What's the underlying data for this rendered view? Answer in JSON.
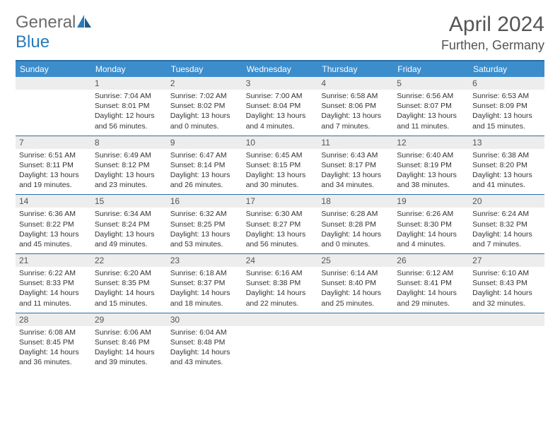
{
  "logo": {
    "text1": "General",
    "text2": "Blue"
  },
  "title": "April 2024",
  "location": "Furthen, Germany",
  "dayHeaders": [
    "Sunday",
    "Monday",
    "Tuesday",
    "Wednesday",
    "Thursday",
    "Friday",
    "Saturday"
  ],
  "colors": {
    "headerBg": "#3c8dcc",
    "borderTop": "#2a6da3",
    "rowDivider": "#2a6da3",
    "dayNumBg": "#ededed",
    "logoGray": "#6b6b6b",
    "logoBlue": "#2a7ab9"
  },
  "weeks": [
    [
      {
        "empty": true
      },
      {
        "day": "1",
        "sunrise": "Sunrise: 7:04 AM",
        "sunset": "Sunset: 8:01 PM",
        "d1": "Daylight: 12 hours",
        "d2": "and 56 minutes."
      },
      {
        "day": "2",
        "sunrise": "Sunrise: 7:02 AM",
        "sunset": "Sunset: 8:02 PM",
        "d1": "Daylight: 13 hours",
        "d2": "and 0 minutes."
      },
      {
        "day": "3",
        "sunrise": "Sunrise: 7:00 AM",
        "sunset": "Sunset: 8:04 PM",
        "d1": "Daylight: 13 hours",
        "d2": "and 4 minutes."
      },
      {
        "day": "4",
        "sunrise": "Sunrise: 6:58 AM",
        "sunset": "Sunset: 8:06 PM",
        "d1": "Daylight: 13 hours",
        "d2": "and 7 minutes."
      },
      {
        "day": "5",
        "sunrise": "Sunrise: 6:56 AM",
        "sunset": "Sunset: 8:07 PM",
        "d1": "Daylight: 13 hours",
        "d2": "and 11 minutes."
      },
      {
        "day": "6",
        "sunrise": "Sunrise: 6:53 AM",
        "sunset": "Sunset: 8:09 PM",
        "d1": "Daylight: 13 hours",
        "d2": "and 15 minutes."
      }
    ],
    [
      {
        "day": "7",
        "sunrise": "Sunrise: 6:51 AM",
        "sunset": "Sunset: 8:11 PM",
        "d1": "Daylight: 13 hours",
        "d2": "and 19 minutes."
      },
      {
        "day": "8",
        "sunrise": "Sunrise: 6:49 AM",
        "sunset": "Sunset: 8:12 PM",
        "d1": "Daylight: 13 hours",
        "d2": "and 23 minutes."
      },
      {
        "day": "9",
        "sunrise": "Sunrise: 6:47 AM",
        "sunset": "Sunset: 8:14 PM",
        "d1": "Daylight: 13 hours",
        "d2": "and 26 minutes."
      },
      {
        "day": "10",
        "sunrise": "Sunrise: 6:45 AM",
        "sunset": "Sunset: 8:15 PM",
        "d1": "Daylight: 13 hours",
        "d2": "and 30 minutes."
      },
      {
        "day": "11",
        "sunrise": "Sunrise: 6:43 AM",
        "sunset": "Sunset: 8:17 PM",
        "d1": "Daylight: 13 hours",
        "d2": "and 34 minutes."
      },
      {
        "day": "12",
        "sunrise": "Sunrise: 6:40 AM",
        "sunset": "Sunset: 8:19 PM",
        "d1": "Daylight: 13 hours",
        "d2": "and 38 minutes."
      },
      {
        "day": "13",
        "sunrise": "Sunrise: 6:38 AM",
        "sunset": "Sunset: 8:20 PM",
        "d1": "Daylight: 13 hours",
        "d2": "and 41 minutes."
      }
    ],
    [
      {
        "day": "14",
        "sunrise": "Sunrise: 6:36 AM",
        "sunset": "Sunset: 8:22 PM",
        "d1": "Daylight: 13 hours",
        "d2": "and 45 minutes."
      },
      {
        "day": "15",
        "sunrise": "Sunrise: 6:34 AM",
        "sunset": "Sunset: 8:24 PM",
        "d1": "Daylight: 13 hours",
        "d2": "and 49 minutes."
      },
      {
        "day": "16",
        "sunrise": "Sunrise: 6:32 AM",
        "sunset": "Sunset: 8:25 PM",
        "d1": "Daylight: 13 hours",
        "d2": "and 53 minutes."
      },
      {
        "day": "17",
        "sunrise": "Sunrise: 6:30 AM",
        "sunset": "Sunset: 8:27 PM",
        "d1": "Daylight: 13 hours",
        "d2": "and 56 minutes."
      },
      {
        "day": "18",
        "sunrise": "Sunrise: 6:28 AM",
        "sunset": "Sunset: 8:28 PM",
        "d1": "Daylight: 14 hours",
        "d2": "and 0 minutes."
      },
      {
        "day": "19",
        "sunrise": "Sunrise: 6:26 AM",
        "sunset": "Sunset: 8:30 PM",
        "d1": "Daylight: 14 hours",
        "d2": "and 4 minutes."
      },
      {
        "day": "20",
        "sunrise": "Sunrise: 6:24 AM",
        "sunset": "Sunset: 8:32 PM",
        "d1": "Daylight: 14 hours",
        "d2": "and 7 minutes."
      }
    ],
    [
      {
        "day": "21",
        "sunrise": "Sunrise: 6:22 AM",
        "sunset": "Sunset: 8:33 PM",
        "d1": "Daylight: 14 hours",
        "d2": "and 11 minutes."
      },
      {
        "day": "22",
        "sunrise": "Sunrise: 6:20 AM",
        "sunset": "Sunset: 8:35 PM",
        "d1": "Daylight: 14 hours",
        "d2": "and 15 minutes."
      },
      {
        "day": "23",
        "sunrise": "Sunrise: 6:18 AM",
        "sunset": "Sunset: 8:37 PM",
        "d1": "Daylight: 14 hours",
        "d2": "and 18 minutes."
      },
      {
        "day": "24",
        "sunrise": "Sunrise: 6:16 AM",
        "sunset": "Sunset: 8:38 PM",
        "d1": "Daylight: 14 hours",
        "d2": "and 22 minutes."
      },
      {
        "day": "25",
        "sunrise": "Sunrise: 6:14 AM",
        "sunset": "Sunset: 8:40 PM",
        "d1": "Daylight: 14 hours",
        "d2": "and 25 minutes."
      },
      {
        "day": "26",
        "sunrise": "Sunrise: 6:12 AM",
        "sunset": "Sunset: 8:41 PM",
        "d1": "Daylight: 14 hours",
        "d2": "and 29 minutes."
      },
      {
        "day": "27",
        "sunrise": "Sunrise: 6:10 AM",
        "sunset": "Sunset: 8:43 PM",
        "d1": "Daylight: 14 hours",
        "d2": "and 32 minutes."
      }
    ],
    [
      {
        "day": "28",
        "sunrise": "Sunrise: 6:08 AM",
        "sunset": "Sunset: 8:45 PM",
        "d1": "Daylight: 14 hours",
        "d2": "and 36 minutes."
      },
      {
        "day": "29",
        "sunrise": "Sunrise: 6:06 AM",
        "sunset": "Sunset: 8:46 PM",
        "d1": "Daylight: 14 hours",
        "d2": "and 39 minutes."
      },
      {
        "day": "30",
        "sunrise": "Sunrise: 6:04 AM",
        "sunset": "Sunset: 8:48 PM",
        "d1": "Daylight: 14 hours",
        "d2": "and 43 minutes."
      },
      {
        "empty": true
      },
      {
        "empty": true
      },
      {
        "empty": true
      },
      {
        "empty": true
      }
    ]
  ]
}
